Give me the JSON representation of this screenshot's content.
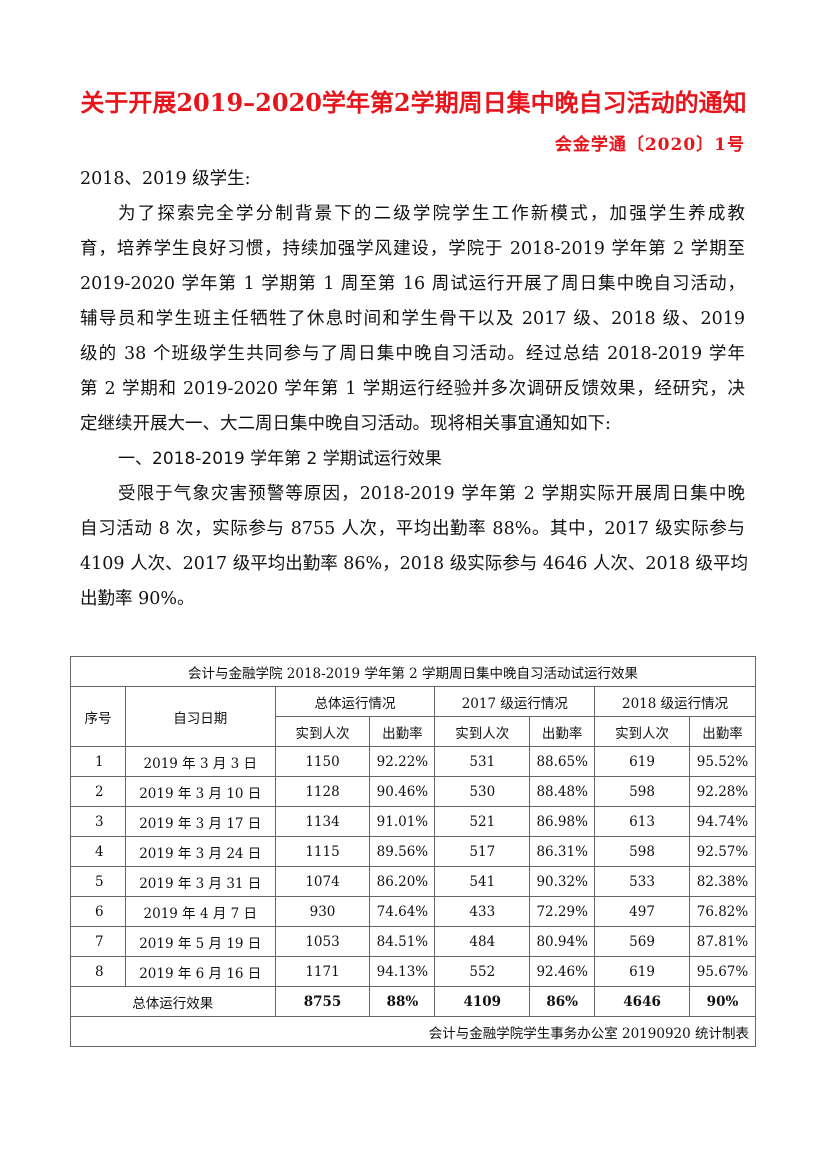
{
  "header": {
    "title": "关于开展2019–2020学年第2学期周日集中晚自习活动的通知",
    "doc_number": "会金学通〔2020〕1号"
  },
  "body": {
    "salutation": "2018、2019 级学生:",
    "intro_lines": [
      "为了探索完全学分制背景下的二级学院学生工作新模式，加强学生养成教",
      "育，培养学生良好习惯，持续加强学风建设，学院于 2018-2019 学年第 2 学期至",
      "2019-2020 学年第 1 学期第 1 周至第 16 周试运行开展了周日集中晚自习活动，",
      "辅导员和学生班主任牺牲了休息时间和学生骨干以及 2017 级、2018 级、2019",
      "级的 38 个班级学生共同参与了周日集中晚自习活动。经过总结 2018-2019 学年",
      "第 2 学期和 2019-2020 学年第 1 学期运行经验并多次调研反馈效果，经研究，决",
      "定继续开展大一、大二周日集中晚自习活动。现将相关事宜通知如下:"
    ],
    "section1_heading": "一、2018-2019 学年第 2 学期试运行效果",
    "section1_lines": [
      "受限于气象灾害预警等原因，2018-2019 学年第 2 学期实际开展周日集中晚",
      "自习活动 8 次，实际参与 8755 人次，平均出勤率 88%。其中，2017 级实际参与",
      "4109 人次、2017 级平均出勤率 86%，2018 级实际参与 4646 人次、2018 级平均",
      "出勤率 90%。"
    ]
  },
  "table": {
    "caption": "会计与金融学院 2018-2019 学年第 2 学期周日集中晚自习活动试运行效果",
    "col_index": "序号",
    "col_date": "自习日期",
    "groups": [
      "总体运行情况",
      "2017 级运行情况",
      "2018 级运行情况"
    ],
    "sub_headers": [
      "实到人次",
      "出勤率",
      "实到人次",
      "出勤率",
      "实到人次",
      "出勤率"
    ],
    "rows": [
      [
        "1",
        "2019 年 3 月 3 日",
        "1150",
        "92.22%",
        "531",
        "88.65%",
        "619",
        "95.52%"
      ],
      [
        "2",
        "2019 年 3 月 10 日",
        "1128",
        "90.46%",
        "530",
        "88.48%",
        "598",
        "92.28%"
      ],
      [
        "3",
        "2019 年 3 月 17 日",
        "1134",
        "91.01%",
        "521",
        "86.98%",
        "613",
        "94.74%"
      ],
      [
        "4",
        "2019 年 3 月 24 日",
        "1115",
        "89.56%",
        "517",
        "86.31%",
        "598",
        "92.57%"
      ],
      [
        "5",
        "2019 年 3 月 31 日",
        "1074",
        "86.20%",
        "541",
        "90.32%",
        "533",
        "82.38%"
      ],
      [
        "6",
        "2019 年 4 月 7 日",
        "930",
        "74.64%",
        "433",
        "72.29%",
        "497",
        "76.82%"
      ],
      [
        "7",
        "2019 年 5 月 19 日",
        "1053",
        "84.51%",
        "484",
        "80.94%",
        "569",
        "87.81%"
      ],
      [
        "8",
        "2019 年 6 月 16 日",
        "1171",
        "94.13%",
        "552",
        "92.46%",
        "619",
        "95.67%"
      ]
    ],
    "total_label": "总体运行效果",
    "totals": [
      "8755",
      "88%",
      "4109",
      "86%",
      "4646",
      "90%"
    ],
    "footer": "会计与金融学院学生事务办公室 20190920 统计制表"
  },
  "colors": {
    "title": "#e8141b",
    "text": "#111111",
    "border": "#666666"
  }
}
